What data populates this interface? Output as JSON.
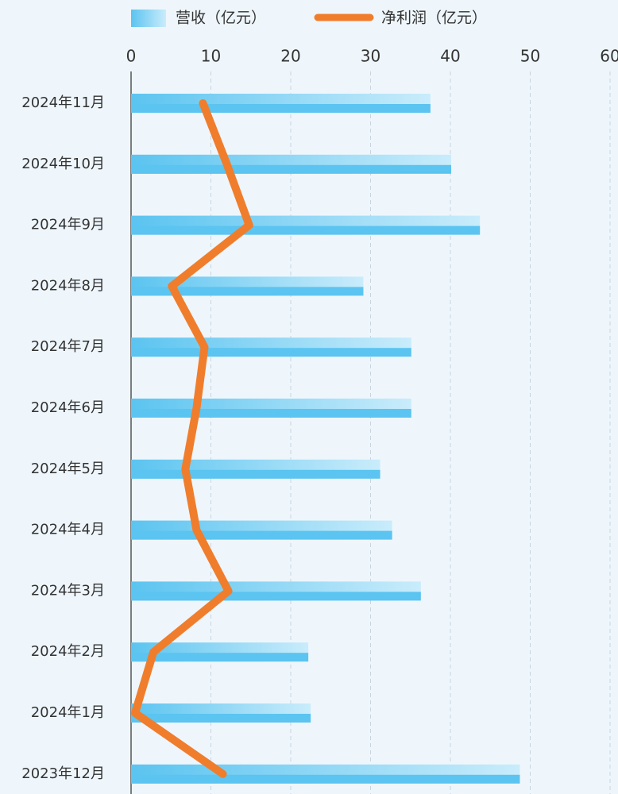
{
  "chart_data": {
    "type": "bar",
    "categories": [
      "2024年11月",
      "2024年10月",
      "2024年9月",
      "2024年8月",
      "2024年7月",
      "2024年6月",
      "2024年5月",
      "2024年4月",
      "2024年3月",
      "2024年2月",
      "2024年1月",
      "2023年12月"
    ],
    "series": [
      {
        "name": "营收（亿元）",
        "color": "#5bc4f0",
        "type": "bar",
        "values": [
          37.5,
          40.1,
          43.7,
          29.1,
          35.1,
          35.1,
          31.2,
          32.7,
          36.3,
          22.2,
          22.5,
          48.7
        ]
      },
      {
        "name": "净利润（亿元）",
        "color": "#f07d2c",
        "type": "line",
        "values": [
          9.0,
          12.0,
          14.8,
          5.1,
          9.2,
          8.2,
          6.8,
          8.2,
          12.2,
          2.8,
          0.5,
          11.5
        ]
      }
    ],
    "xlim": [
      0,
      60
    ],
    "xticks": [
      0,
      10,
      20,
      30,
      40,
      50,
      60
    ],
    "grid": true,
    "legend": "top"
  }
}
